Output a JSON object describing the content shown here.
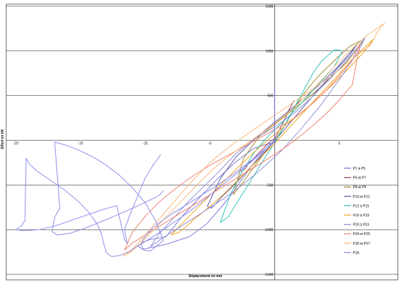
{
  "chart_data": {
    "type": "line",
    "title": "",
    "xlabel": "Déplacement en mm",
    "ylabel": "Effort en kN",
    "xlim": [
      -20,
      10
    ],
    "ylim": [
      -1500,
      1500
    ],
    "x_ticks": [
      -20,
      -15,
      -10,
      -5,
      5
    ],
    "x_tick_labels": [
      "-20",
      "-15",
      "-10",
      "-5",
      "5"
    ],
    "y_ticks": [
      -1500,
      -1000,
      -500,
      500,
      1000,
      1500
    ],
    "y_tick_labels": [
      "-1500",
      "-1000",
      "-500",
      "500",
      "1000",
      "1500"
    ],
    "grid": "horizontal",
    "legend_position": "right",
    "series": [
      {
        "name": "P1 à P5",
        "color": "#7b78d6",
        "x": [
          -0.3,
          -1.4,
          -2.6,
          -3.4,
          -4.2,
          -5.2,
          -6.6,
          -8.3,
          -10.2,
          -10.6,
          -10.2,
          -9.6,
          -9.2,
          -8.8,
          -8.4,
          -7.2,
          -5.8,
          -4.4,
          -3.0,
          -1.6,
          -0.3
        ],
        "y": [
          -30,
          -220,
          -450,
          -620,
          -760,
          -930,
          -1080,
          -1160,
          -1220,
          -1180,
          -1140,
          -1110,
          -1100,
          -1090,
          -1080,
          -860,
          -640,
          -430,
          -240,
          -90,
          -30
        ]
      },
      {
        "name": "P6 et P7",
        "color": "#a0395a",
        "x": [
          -2.6,
          -2.3,
          -2.0,
          -1.6,
          -1.2,
          -0.8,
          -0.4,
          0,
          0.4,
          0.8,
          1.1,
          1.5
        ],
        "y": [
          -350,
          -320,
          -260,
          -200,
          -140,
          -80,
          -20,
          20,
          120,
          240,
          340,
          440
        ]
      },
      {
        "name": "P8 et P9",
        "color": "#a38a2c",
        "x": [
          -3.2,
          -2.6,
          -2.0,
          -1.4,
          -0.8,
          -0.2,
          0.4,
          1.0,
          1.6,
          2.4,
          3.4,
          4.6,
          5.8,
          6.6,
          6.8,
          5.6,
          4.2,
          2.8,
          1.4,
          0.2,
          -1.2,
          -2.4,
          -3.2
        ],
        "y": [
          -610,
          -500,
          -380,
          -260,
          -150,
          -40,
          80,
          220,
          380,
          550,
          720,
          890,
          1050,
          1110,
          1100,
          880,
          680,
          500,
          340,
          200,
          40,
          -200,
          -610
        ]
      },
      {
        "name": "P10 et P11",
        "color": "#5c5aa8",
        "x": [
          -5.2,
          -4.9,
          -4.5,
          -4.0,
          -3.4,
          -2.8,
          -2.1,
          -1.4,
          -0.7,
          0,
          0.7,
          1.4,
          2.1,
          2.8,
          3.5,
          4.3,
          5.0,
          5.8,
          6.3,
          6.6,
          5.6,
          4.6,
          3.6,
          2.6,
          1.6,
          0.6,
          -0.6,
          -1.8,
          -3.0,
          -4.2,
          -5.2
        ],
        "y": [
          -740,
          -760,
          -700,
          -620,
          -540,
          -450,
          -340,
          -230,
          -120,
          -10,
          110,
          230,
          350,
          470,
          590,
          710,
          830,
          950,
          1060,
          1110,
          940,
          780,
          640,
          510,
          390,
          270,
          130,
          -20,
          -190,
          -430,
          -740
        ]
      },
      {
        "name": "P12 à P15",
        "color": "#2fc5b8",
        "x": [
          -4.2,
          -3.6,
          -3.0,
          -2.4,
          -1.8,
          -1.2,
          -0.6,
          0,
          0.6,
          1.2,
          1.8,
          2.4,
          3.0,
          3.6,
          4.2,
          4.6,
          5.0,
          5.2,
          4.6,
          3.6,
          2.6,
          1.6,
          0.6,
          -0.4,
          -1.4,
          -2.4,
          -3.4,
          -4.2
        ],
        "y": [
          -920,
          -860,
          -720,
          -580,
          -440,
          -300,
          -160,
          -30,
          120,
          280,
          440,
          600,
          760,
          880,
          960,
          1010,
          1010,
          990,
          820,
          660,
          500,
          340,
          200,
          60,
          -100,
          -320,
          -600,
          -920
        ]
      },
      {
        "name": "P16 à P19",
        "color": "#f2a11f",
        "x": [
          -8.0,
          -7.4,
          -6.8,
          -6.2,
          -5.5,
          -4.6,
          -3.7,
          -2.8,
          -1.9,
          -1.0,
          -0.1,
          0.8,
          1.7,
          2.6,
          3.5,
          4.4,
          5.3,
          6.2,
          7.1,
          7.7,
          6.8,
          5.7,
          4.6,
          3.5,
          2.4,
          1.3,
          0.2,
          -1.2,
          -2.8,
          -4.6,
          -6.4,
          -8.0
        ],
        "y": [
          -1060,
          -1030,
          -960,
          -880,
          -800,
          -690,
          -570,
          -440,
          -310,
          -180,
          -50,
          90,
          230,
          370,
          510,
          650,
          790,
          930,
          1060,
          1140,
          970,
          800,
          640,
          490,
          350,
          220,
          90,
          -80,
          -300,
          -560,
          -820,
          -1060
        ]
      },
      {
        "name": "P20 à P23",
        "color": "#8f8fd6",
        "x": [
          -9.0,
          -9.6,
          -8.5,
          -7.0,
          -5.5,
          -4.0,
          -2.5,
          -1.0,
          0.5,
          2.0,
          3.5,
          5.0,
          6.5,
          7.0,
          6.0,
          4.5,
          3.0,
          1.5,
          0,
          -1.5,
          -3.0,
          -4.5,
          -6.5,
          -9.0
        ],
        "y": [
          -1060,
          -1190,
          -1080,
          -940,
          -800,
          -660,
          -500,
          -320,
          -120,
          120,
          380,
          680,
          1000,
          1150,
          960,
          720,
          500,
          300,
          150,
          20,
          -150,
          -380,
          -660,
          -1060
        ]
      },
      {
        "name": "P24 et P25",
        "color": "#f07f6c",
        "x": [
          -11.6,
          -11.0,
          -10.0,
          -9.0,
          -8.0,
          -7.0,
          -6.0,
          -5.0,
          -4.0,
          -3.0,
          -2.0,
          -1.0,
          0,
          1.0,
          2.0,
          3.0,
          4.0,
          5.0,
          6.0,
          6.6,
          6.0,
          5.0,
          4.0,
          3.0,
          2.0,
          1.0,
          0,
          -1.0,
          -2.0,
          -3.0,
          -4.0,
          -5.0,
          -6.0,
          -7.0,
          -8.0,
          -9.0,
          -10.0,
          -11.0,
          -11.6
        ],
        "y": [
          -1230,
          -1150,
          -1060,
          -970,
          -880,
          -790,
          -700,
          -610,
          -520,
          -430,
          -340,
          -250,
          -160,
          -60,
          50,
          170,
          300,
          450,
          620,
          1080,
          900,
          720,
          560,
          420,
          300,
          200,
          120,
          40,
          -40,
          -120,
          -200,
          -280,
          -370,
          -470,
          -580,
          -700,
          -850,
          -1030,
          -1230
        ]
      },
      {
        "name": "P26 et P27",
        "color": "#f8b97a",
        "x": [
          -11.8,
          -11.2,
          -10.6,
          -10.0,
          -9.4,
          -8.8,
          -8.2,
          -7.6,
          -7.0,
          -6.4,
          -5.8,
          -5.2,
          -4.6,
          -4.0,
          -3.4,
          -2.8,
          -2.2,
          -1.6,
          -1.0,
          -0.4,
          0.2,
          0.8,
          1.4,
          2.0,
          2.6,
          3.2,
          3.8,
          4.4,
          5.0,
          5.6,
          6.2,
          6.8,
          7.4,
          7.6,
          7.9,
          8.3,
          8.5,
          8.0,
          7.2,
          6.4,
          5.6,
          4.8,
          4.0,
          3.2,
          2.4,
          1.6,
          0.8,
          0,
          -0.8,
          -1.6,
          -2.4,
          -3.2,
          -4.0,
          -4.8,
          -5.6,
          -6.4,
          -7.2,
          -8.0,
          -8.8,
          -9.6,
          -10.4,
          -11.2,
          -11.8
        ],
        "y": [
          -1300,
          -1250,
          -1160,
          -1060,
          -960,
          -860,
          -760,
          -660,
          -560,
          -460,
          -370,
          -280,
          -200,
          -130,
          -60,
          0,
          60,
          120,
          180,
          240,
          300,
          360,
          420,
          480,
          540,
          600,
          660,
          720,
          790,
          860,
          930,
          1000,
          1060,
          1120,
          1200,
          1280,
          1310,
          1260,
          1180,
          1080,
          970,
          850,
          730,
          610,
          490,
          380,
          280,
          190,
          100,
          20,
          -60,
          -140,
          -230,
          -330,
          -440,
          -560,
          -680,
          -800,
          -920,
          -1040,
          -1160,
          -1260,
          -1300
        ]
      },
      {
        "name": "P28",
        "color": "#8c8cea",
        "x": [
          0,
          -0.6,
          -1.4,
          -2.3,
          -3.3,
          -4.4,
          -5.6,
          -6.8,
          -7.9,
          -8.8,
          -9.5,
          -9.9,
          -10.2,
          -10.3,
          -10.1,
          -9.6,
          -8.6,
          -9.2,
          -10.0,
          -11.0,
          -12.0,
          -13.0,
          -14.0,
          -15.0,
          -16.0,
          -17.0,
          -16.6,
          -17.0,
          -17.2,
          -16.8,
          -15.8,
          -14.6,
          -13.4,
          -12.4,
          -11.6,
          -11.0,
          -10.4,
          -9.8,
          -9.2,
          -8.8,
          -8.6
        ],
        "y": [
          0,
          -80,
          -180,
          -280,
          -390,
          -500,
          -610,
          -720,
          -820,
          -910,
          -990,
          -1060,
          -1120,
          -1180,
          -1230,
          -1240,
          -1120,
          -900,
          -700,
          -530,
          -390,
          -280,
          -190,
          -120,
          -60,
          -20,
          -760,
          -860,
          -1020,
          -1060,
          -1040,
          -980,
          -910,
          -850,
          -800,
          -760,
          -720,
          -680,
          -640,
          -600,
          -560
        ]
      },
      {
        "name": "",
        "color": "#8c8cea",
        "x": [
          0,
          -0.8,
          -1.8,
          -3.0,
          -4.2,
          -5.4,
          -6.6,
          -7.8,
          -9.0,
          -10.2,
          -11.2,
          -12.0,
          -12.6,
          -13.0,
          -13.2,
          -13.4,
          -13.8,
          -14.4,
          -15.2,
          -16.2,
          -17.4,
          -18.4,
          -19.0,
          -19.2,
          -19.3,
          -19.6,
          -20.0,
          -19.4,
          -18.2,
          -17.0,
          -15.8,
          -14.6,
          -13.4,
          -12.2,
          -11.6,
          -11.4,
          -11.6,
          -11.2,
          -10.8,
          -10.4,
          -10.0,
          -9.4,
          -8.8
        ],
        "y": [
          0,
          -110,
          -240,
          -380,
          -520,
          -660,
          -800,
          -920,
          -1040,
          -1150,
          -1240,
          -1290,
          -1300,
          -1260,
          -1160,
          -1040,
          -920,
          -800,
          -680,
          -560,
          -440,
          -340,
          -260,
          -200,
          -900,
          -960,
          -1000,
          -1010,
          -1000,
          -960,
          -900,
          -840,
          -780,
          -730,
          -1110,
          -1150,
          -1000,
          -840,
          -700,
          -560,
          -420,
          -280,
          -160
        ]
      },
      {
        "name": "",
        "color": "#5b5bd6",
        "x": [
          0,
          0,
          0,
          0
        ],
        "y": [
          -50,
          560,
          580,
          -30
        ]
      }
    ],
    "grid_lines": [
      1500,
      1000,
      500,
      -500,
      -1000,
      -1500
    ]
  }
}
